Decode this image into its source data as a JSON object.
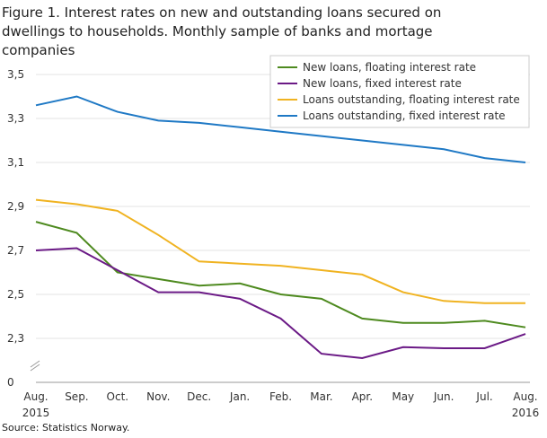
{
  "chart_data": {
    "type": "line",
    "title": "Figure 1. Interest rates on new and outstanding loans secured on dwellings to households. Monthly sample of banks and mortage companies",
    "source": "Source: Statistics Norway.",
    "categories": [
      "Aug. 2015",
      "Sep.",
      "Oct.",
      "Nov.",
      "Dec.",
      "Jan.",
      "Feb.",
      "Mar.",
      "Apr.",
      "May",
      "Jun.",
      "Jul.",
      "Aug. 2016"
    ],
    "series": [
      {
        "name": "New loans, floating interest rate",
        "color": "#4e8a1f",
        "values": [
          2.83,
          2.78,
          2.6,
          2.57,
          2.54,
          2.55,
          2.5,
          2.48,
          2.39,
          2.37,
          2.37,
          2.38,
          2.35
        ]
      },
      {
        "name": "New loans, fixed interest rate",
        "color": "#6b1a86",
        "values": [
          2.7,
          2.71,
          2.61,
          2.51,
          2.51,
          2.48,
          2.39,
          2.23,
          2.21,
          2.26,
          2.255,
          2.255,
          2.32
        ]
      },
      {
        "name": "Loans outstanding, floating interest rate",
        "color": "#f0b321",
        "values": [
          2.93,
          2.91,
          2.88,
          2.77,
          2.65,
          2.64,
          2.63,
          2.61,
          2.59,
          2.51,
          2.47,
          2.46,
          2.46
        ]
      },
      {
        "name": "Loans outstanding, fixed interest rate",
        "color": "#1f79c5",
        "values": [
          3.36,
          3.4,
          3.33,
          3.29,
          3.28,
          3.26,
          3.24,
          3.22,
          3.2,
          3.18,
          3.16,
          3.12,
          3.1
        ]
      }
    ],
    "ylim": [
      0,
      3.5
    ],
    "axis_break": true,
    "yticks": [
      0,
      {
        "value": 2.3,
        "label": "2,3"
      },
      {
        "value": 2.5,
        "label": "2,5"
      },
      {
        "value": 2.7,
        "label": "2,7"
      },
      {
        "value": 2.9,
        "label": "2,9"
      },
      {
        "value": 3.1,
        "label": "3,1"
      },
      {
        "value": 3.3,
        "label": "3,3"
      },
      {
        "value": 3.5,
        "label": "3,5"
      }
    ],
    "grid": true,
    "legend": "top-right"
  }
}
